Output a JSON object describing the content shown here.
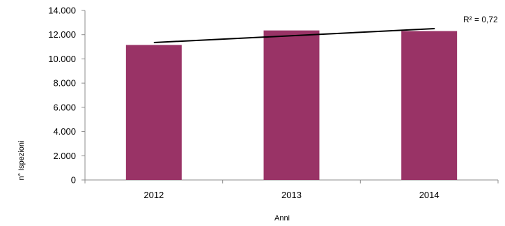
{
  "chart_data": {
    "type": "bar",
    "categories": [
      "2012",
      "2013",
      "2014"
    ],
    "series": [
      {
        "values": [
          11150,
          12350,
          12300
        ]
      }
    ],
    "trendline": {
      "type": "linear",
      "start": [
        2012,
        11350
      ],
      "end": [
        2014,
        12500
      ],
      "annotation": "R² = 0,72"
    },
    "title": "",
    "xlabel": "Anni",
    "ylabel": "n° Ispezioni",
    "ylim": [
      0,
      14000
    ],
    "y_ticks": [
      "0",
      "2.000",
      "4.000",
      "6.000",
      "8.000",
      "10.000",
      "12.000",
      "14.000"
    ],
    "y_tick_values": [
      0,
      2000,
      4000,
      6000,
      8000,
      10000,
      12000,
      14000
    ],
    "grid": false,
    "legend": "none",
    "colors": {
      "bar": "#993366",
      "trendline": "#000000",
      "axis": "#8c8c8c"
    }
  }
}
